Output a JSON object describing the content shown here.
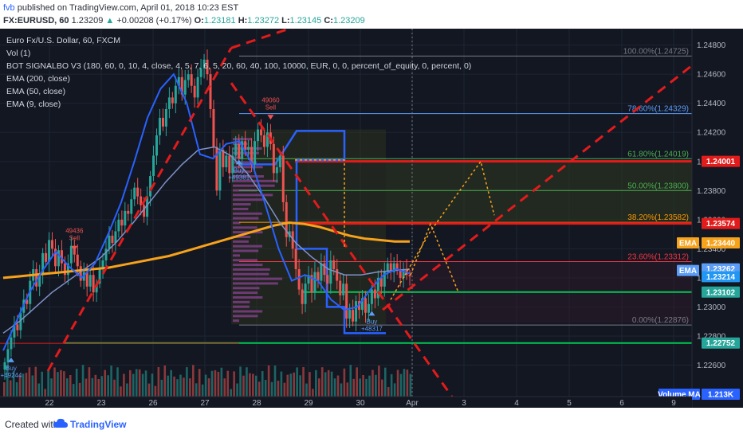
{
  "header": {
    "publisher": "fvb",
    "published_text": "published on TradingView.com, April 01, 2018 10:23 EST",
    "symbol": "FX:EURUSD, 60",
    "last": "1.23209",
    "change": "+0.00208 (+0.17%)",
    "open_label": "O:",
    "open": "1.23181",
    "high_label": "H:",
    "high": "1.23272",
    "low_label": "L:",
    "low": "1.23145",
    "close_label": "C:",
    "close": "1.23209"
  },
  "legend": {
    "title": "Euro Fx/U.S. Dollar, 60, FXCM",
    "vol": "Vol (1)",
    "bot": "BOT SIGNALBO V3 (180, 60, 0, 10, 4, close, 4, 5, 7, 6, 5, 20, 60, 40, 100, 10000, EUR, 0, 0, percent_of_equity, 0, percent, 0)",
    "ema200": "EMA (200, close)",
    "ema50": "EMA (50, close)",
    "ema9": "EMA (9, close)"
  },
  "footer": {
    "created": "Created with",
    "brand": "TradingView"
  },
  "chart_data": {
    "type": "candlestick",
    "ylim": [
      1.2234,
      1.2488
    ],
    "y_ticks": [
      1.248,
      1.246,
      1.244,
      1.242,
      1.24,
      1.238,
      1.236,
      1.234,
      1.232,
      1.23,
      1.228,
      1.226
    ],
    "y_tick_labels": [
      "1.24800",
      "1.24600",
      "1.24400",
      "1.24200",
      "1.24000",
      "1.23800",
      "1.23600",
      "1.23400",
      "1.23200",
      "1.23000",
      "1.22800",
      "1.22600"
    ],
    "x_labels": [
      "22",
      "23",
      "26",
      "27",
      "28",
      "29",
      "30",
      "Apr",
      "3",
      "4",
      "5",
      "6",
      "9"
    ],
    "fibonacci": [
      {
        "label": "100.00%(1.24725)",
        "value": 1.24725,
        "color": "#787b86"
      },
      {
        "label": "78.60%(1.24329)",
        "value": 1.24329,
        "color": "#5b9cf6"
      },
      {
        "label": "61.80%(1.24019)",
        "value": 1.24019,
        "color": "#4caf50"
      },
      {
        "label": "50.00%(1.23800)",
        "value": 1.238,
        "color": "#4caf50"
      },
      {
        "label": "38.20%(1.23582)",
        "value": 1.23582,
        "color": "#ff9800"
      },
      {
        "label": "23.60%(1.23312)",
        "value": 1.23312,
        "color": "#f23645"
      },
      {
        "label": "0.00%(1.22876)",
        "value": 1.22876,
        "color": "#787b86"
      }
    ],
    "price_badges": [
      {
        "text": "1.24001",
        "value": 1.24001,
        "color": "#e21b1b"
      },
      {
        "text": "1.23574",
        "value": 1.23574,
        "color": "#e21b1b"
      },
      {
        "text": "EMA",
        "value": 1.2344,
        "color": "#f7a21b"
      },
      {
        "text": "1.23440",
        "value": 1.2344,
        "color": "#f7a21b"
      },
      {
        "text": "EMA",
        "value": 1.23262,
        "color": "#5b9cf6"
      },
      {
        "text": "1.23262",
        "value": 1.23262,
        "color": "#5b9cf6"
      },
      {
        "text": "1.23214",
        "value": 1.23214,
        "color": "#2196f3"
      },
      {
        "text": "1.23102",
        "value": 1.23102,
        "color": "#26a69a"
      },
      {
        "text": "1.22752",
        "value": 1.22752,
        "color": "#26a69a"
      },
      {
        "text": "Volume MA",
        "value": null,
        "color": "#2962ff"
      },
      {
        "text": "1.213K",
        "value": null,
        "color": "#2962ff"
      }
    ],
    "signals": [
      {
        "type": "Buy",
        "text": "Buy\n+49244",
        "x_index": 2,
        "value": 1.2262
      },
      {
        "type": "Sell",
        "text": "49436\nSell",
        "x_index": 22,
        "value": 1.2342
      },
      {
        "type": "Buy",
        "text": "Buy\n+49381",
        "x_index": 74,
        "value": 1.2398
      },
      {
        "type": "Sell",
        "text": "49060\nSell",
        "x_index": 84,
        "value": 1.2432
      },
      {
        "type": "Buy",
        "text": "Buy\n+48317",
        "x_index": 116,
        "value": 1.2294
      }
    ],
    "close_series": [
      1.2262,
      1.2271,
      1.2279,
      1.2288,
      1.2284,
      1.2296,
      1.2305,
      1.2302,
      1.2318,
      1.2326,
      1.2314,
      1.2322,
      1.2337,
      1.2331,
      1.2346,
      1.234,
      1.2328,
      1.2339,
      1.233,
      1.2322,
      1.233,
      1.2342,
      1.2336,
      1.2328,
      1.2318,
      1.2324,
      1.2314,
      1.2322,
      1.231,
      1.2316,
      1.2326,
      1.2332,
      1.234,
      1.2349,
      1.2344,
      1.2352,
      1.236,
      1.2356,
      1.2366,
      1.2364,
      1.2374,
      1.2382,
      1.2376,
      1.237,
      1.2362,
      1.2376,
      1.239,
      1.2404,
      1.2418,
      1.243,
      1.2424,
      1.2436,
      1.2444,
      1.244,
      1.2452,
      1.2458,
      1.2446,
      1.2456,
      1.246,
      1.2452,
      1.2444,
      1.2458,
      1.2464,
      1.247,
      1.246,
      1.2436,
      1.241,
      1.238,
      1.2408,
      1.2396,
      1.2404,
      1.2392,
      1.2404,
      1.2412,
      1.2402,
      1.2414,
      1.2408,
      1.241,
      1.2398,
      1.2414,
      1.2422,
      1.2418,
      1.241,
      1.242,
      1.2412,
      1.2392,
      1.2396,
      1.2404,
      1.2372,
      1.2348,
      1.2352,
      1.234,
      1.2326,
      1.2312,
      1.2302,
      1.2316,
      1.2322,
      1.231,
      1.2324,
      1.2318,
      1.233,
      1.2322,
      1.2316,
      1.2332,
      1.2326,
      1.2318,
      1.2308,
      1.2316,
      1.2292,
      1.2298,
      1.229,
      1.2304,
      1.2298,
      1.2306,
      1.2296,
      1.2302,
      1.2312,
      1.2306,
      1.232,
      1.2314,
      1.2324,
      1.233,
      1.2324,
      1.233,
      1.2326,
      1.232,
      1.2326,
      1.2322,
      1.2321
    ],
    "ema200": [
      1.232,
      1.2321,
      1.2322,
      1.2323,
      1.2324,
      1.2325,
      1.2326,
      1.2327,
      1.2329,
      1.2331,
      1.2333,
      1.2335,
      1.2338,
      1.2341,
      1.2344,
      1.2347,
      1.235,
      1.2353,
      1.2356,
      1.2358,
      1.2357,
      1.2355,
      1.2352,
      1.2349,
      1.2347,
      1.2346,
      1.2345,
      1.2345
    ],
    "ema50": [
      1.2282,
      1.229,
      1.23,
      1.231,
      1.2318,
      1.2326,
      1.2334,
      1.2345,
      1.2358,
      1.2372,
      1.2386,
      1.2398,
      1.2408,
      1.241,
      1.2404,
      1.2392,
      1.2376,
      1.2358,
      1.2344,
      1.2334,
      1.2326,
      1.2322,
      1.2322,
      1.2324,
      1.2325,
      1.2326
    ],
    "ema9": [
      1.227,
      1.229,
      1.231,
      1.2325,
      1.2338,
      1.2328,
      1.232,
      1.233,
      1.235,
      1.2372,
      1.24,
      1.243,
      1.245,
      1.246,
      1.244,
      1.2405,
      1.2402,
      1.2412,
      1.2414,
      1.2398,
      1.237,
      1.234,
      1.2318,
      1.2322,
      1.2318,
      1.2305,
      1.2298,
      1.23,
      1.2312,
      1.2322,
      1.2326,
      1.2323
    ]
  }
}
